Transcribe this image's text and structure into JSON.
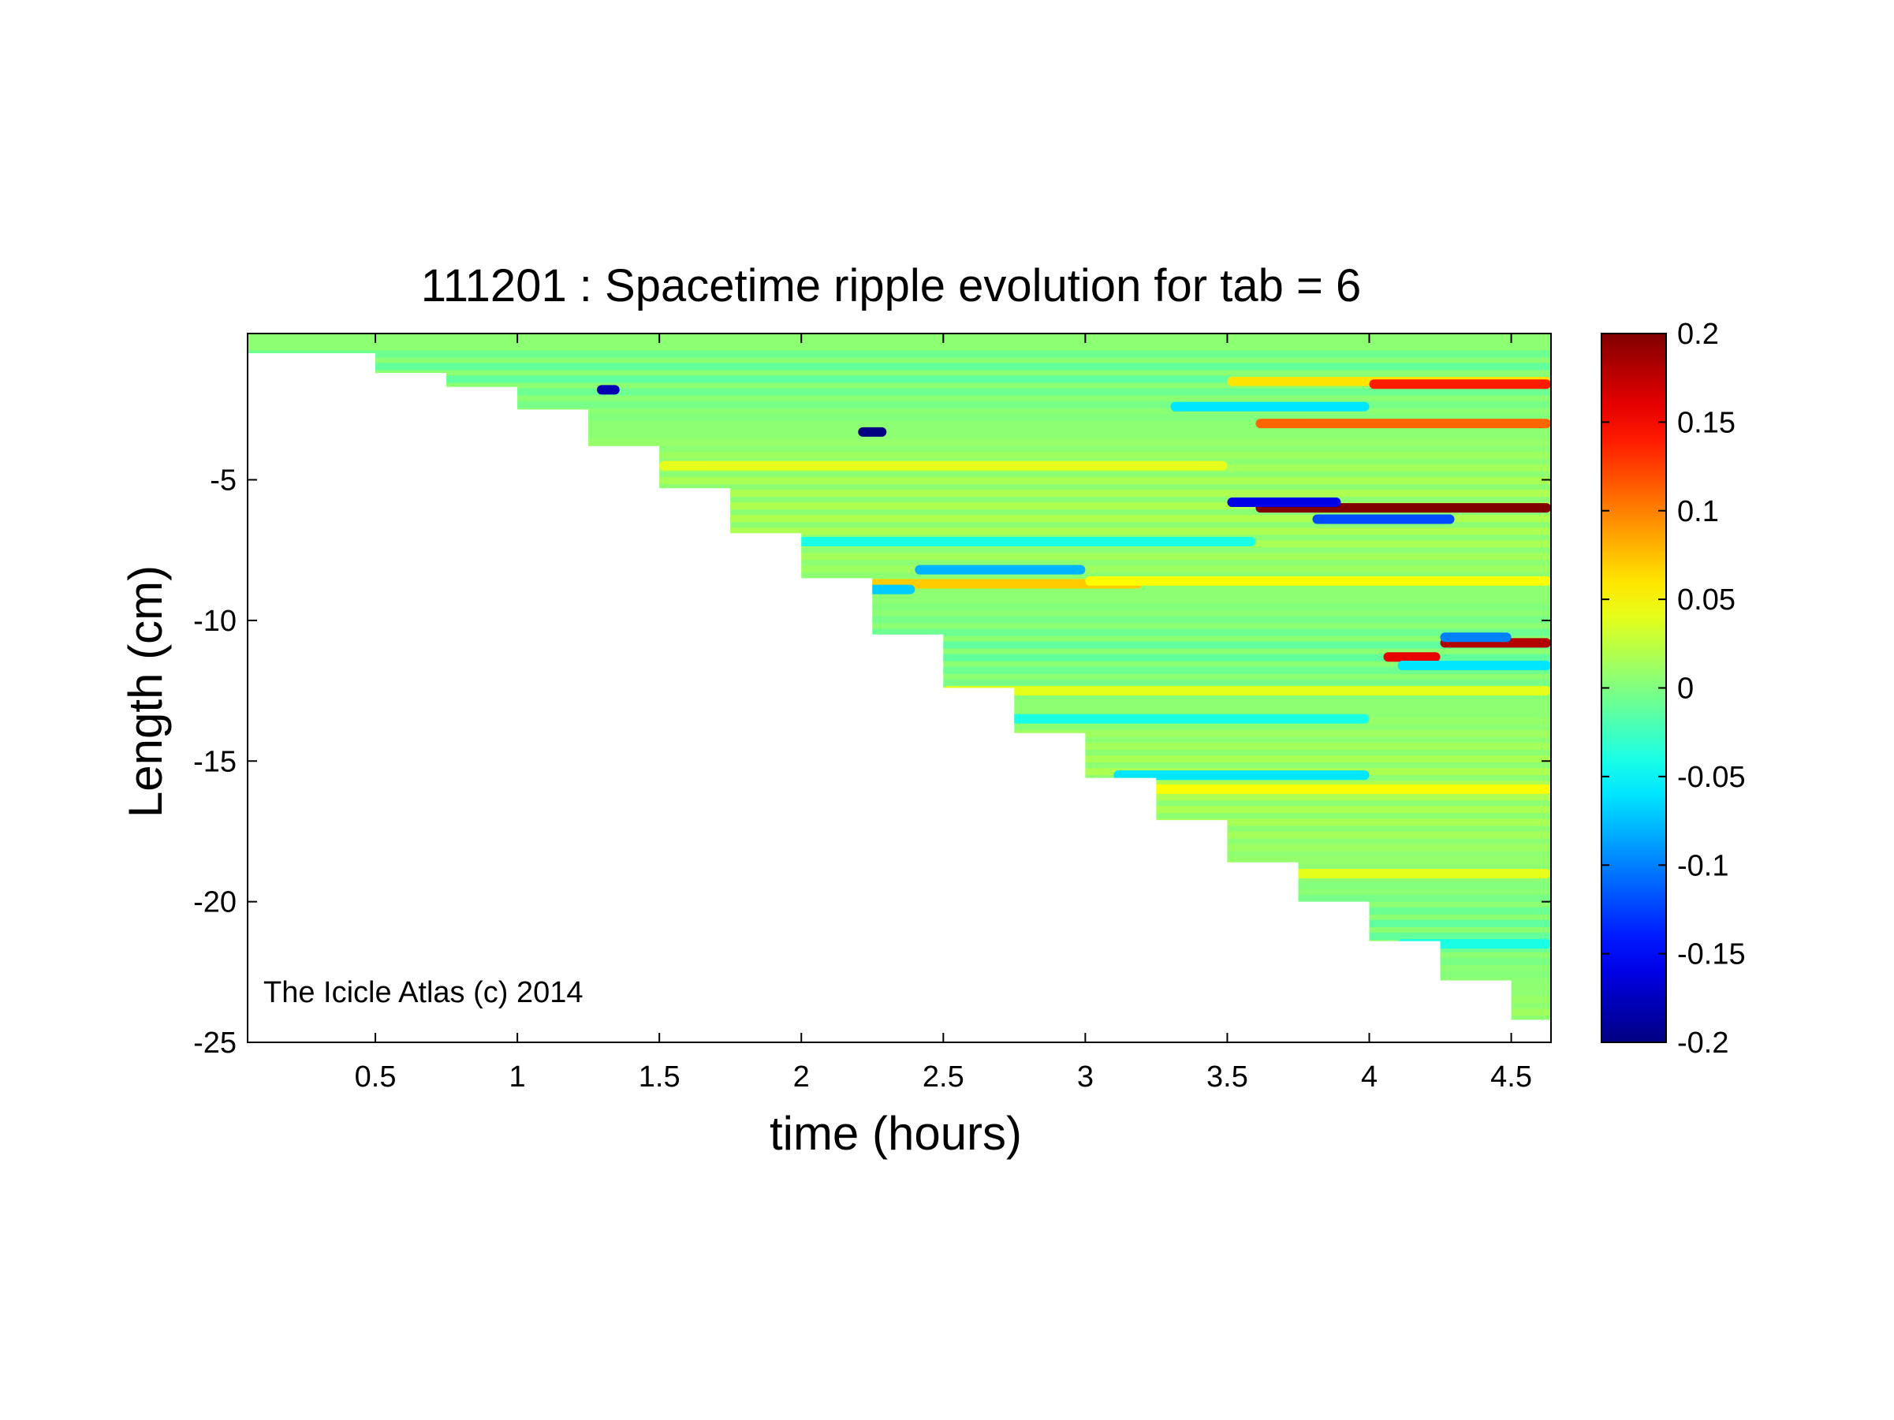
{
  "chart_data": {
    "type": "heatmap",
    "title": "111201 : Spacetime ripple evolution for tab = 6",
    "xlabel": "time (hours)",
    "ylabel": "Length (cm)",
    "xlim": [
      0.05,
      4.64
    ],
    "ylim": [
      -25,
      0.2
    ],
    "x_ticks": [
      0.5,
      1,
      1.5,
      2,
      2.5,
      3,
      3.5,
      4,
      4.5
    ],
    "x_tick_labels": [
      "0.5",
      "1",
      "1.5",
      "2",
      "2.5",
      "3",
      "3.5",
      "4",
      "4.5"
    ],
    "y_ticks": [
      -5,
      -10,
      -15,
      -20,
      -25
    ],
    "y_tick_labels": [
      "-5",
      "-10",
      "-15",
      "-20",
      "-25"
    ],
    "annotation": "The Icicle Atlas (c) 2014",
    "grid": false,
    "colorscale": "jet",
    "colorbar": {
      "range": [
        -0.2,
        0.2
      ],
      "ticks": [
        0.2,
        0.15,
        0.1,
        0.05,
        0,
        -0.05,
        -0.1,
        -0.15,
        -0.2
      ],
      "tick_labels": [
        "0.2",
        "0.15",
        "0.1",
        "0.05",
        "0",
        "-0.05",
        "-0.1",
        "-0.15",
        "-0.2"
      ]
    },
    "icicle_tip_boundary": {
      "time_hours": [
        0.05,
        0.5,
        0.75,
        1.0,
        1.25,
        1.5,
        1.75,
        2.0,
        2.25,
        2.5,
        2.75,
        3.0,
        3.25,
        3.5,
        3.75,
        4.0,
        4.25,
        4.5,
        4.64
      ],
      "length_cm": [
        -0.5,
        -1.2,
        -1.7,
        -2.5,
        -3.8,
        -5.3,
        -6.9,
        -8.5,
        -10.5,
        -12.4,
        -14.0,
        -15.6,
        -17.1,
        -18.6,
        -20.0,
        -21.4,
        -22.8,
        -24.2,
        -24.7
      ]
    },
    "bands": [
      {
        "y": -1.5,
        "t0": 3.5,
        "t1": 4.64,
        "value": 0.06
      },
      {
        "y": -1.6,
        "t0": 4.0,
        "t1": 4.64,
        "value": 0.14
      },
      {
        "y": -2.4,
        "t0": 3.3,
        "t1": 4.0,
        "value": -0.06
      },
      {
        "y": -3.0,
        "t0": 3.6,
        "t1": 4.64,
        "value": 0.11
      },
      {
        "y": -3.3,
        "t0": 2.2,
        "t1": 2.3,
        "value": -0.2
      },
      {
        "y": -1.8,
        "t0": 1.28,
        "t1": 1.36,
        "value": -0.18
      },
      {
        "y": -6.0,
        "t0": 3.6,
        "t1": 4.64,
        "value": 0.2
      },
      {
        "y": -5.8,
        "t0": 3.5,
        "t1": 3.9,
        "value": -0.16
      },
      {
        "y": -6.4,
        "t0": 3.8,
        "t1": 4.3,
        "value": -0.12
      },
      {
        "y": -8.2,
        "t0": 2.4,
        "t1": 3.0,
        "value": -0.08
      },
      {
        "y": -8.7,
        "t0": 2.1,
        "t1": 3.2,
        "value": 0.07
      },
      {
        "y": -8.9,
        "t0": 2.0,
        "t1": 2.4,
        "value": -0.07
      },
      {
        "y": -8.6,
        "t0": 3.0,
        "t1": 4.64,
        "value": 0.05
      },
      {
        "y": -10.8,
        "t0": 4.25,
        "t1": 4.64,
        "value": 0.18
      },
      {
        "y": -10.6,
        "t0": 4.25,
        "t1": 4.5,
        "value": -0.1
      },
      {
        "y": -11.3,
        "t0": 4.05,
        "t1": 4.25,
        "value": 0.16
      },
      {
        "y": -11.6,
        "t0": 4.1,
        "t1": 4.64,
        "value": -0.06
      },
      {
        "y": -15.5,
        "t0": 3.1,
        "t1": 4.0,
        "value": -0.06
      },
      {
        "y": -16.0,
        "t0": 3.1,
        "t1": 4.64,
        "value": 0.05
      },
      {
        "y": -12.5,
        "t0": 2.5,
        "t1": 4.64,
        "value": 0.04
      },
      {
        "y": -13.5,
        "t0": 2.6,
        "t1": 4.0,
        "value": -0.04
      },
      {
        "y": -4.5,
        "t0": 1.5,
        "t1": 3.5,
        "value": 0.04
      },
      {
        "y": -7.2,
        "t0": 1.8,
        "t1": 3.6,
        "value": -0.04
      },
      {
        "y": -19.0,
        "t0": 3.6,
        "t1": 4.64,
        "value": 0.04
      },
      {
        "y": -21.5,
        "t0": 4.1,
        "t1": 4.64,
        "value": -0.04
      }
    ]
  }
}
